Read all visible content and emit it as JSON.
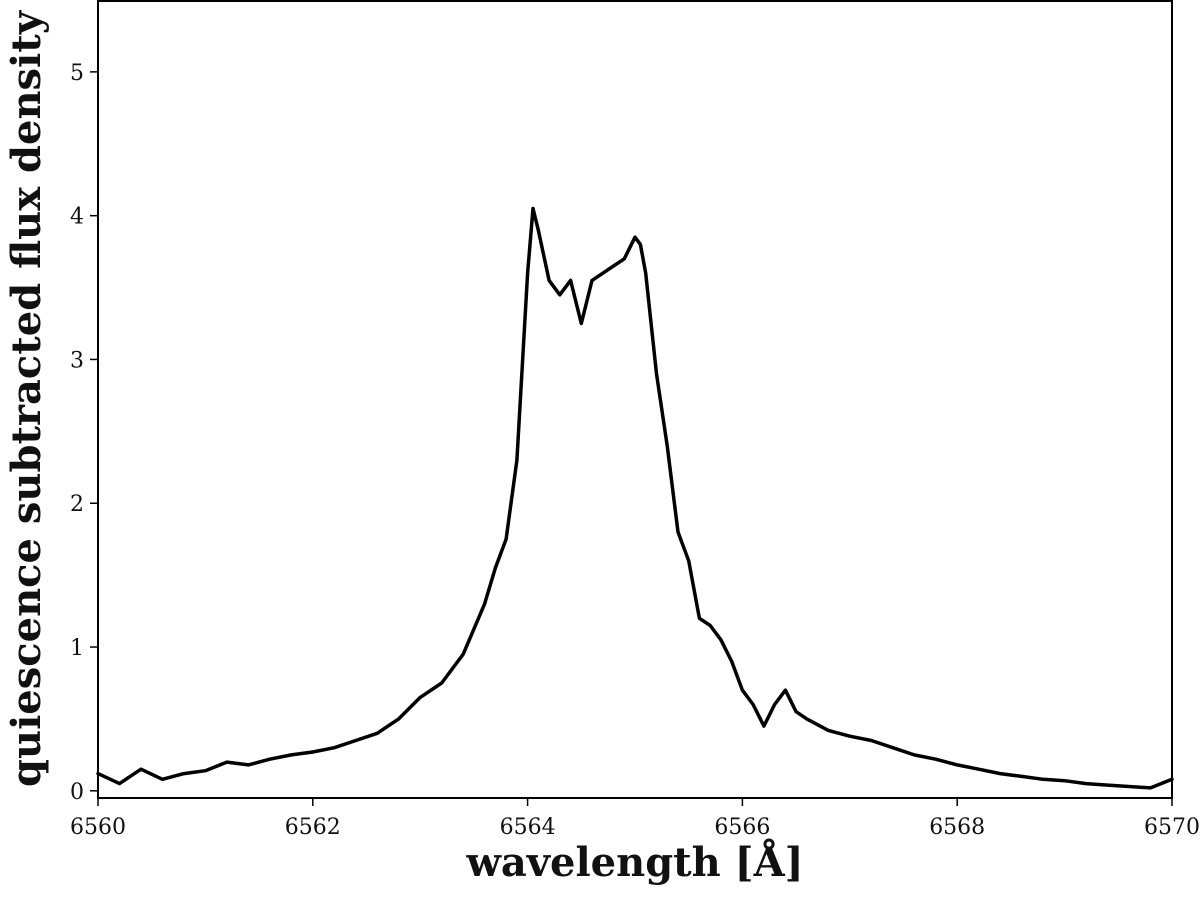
{
  "chart_data": {
    "type": "line",
    "title": "",
    "xlabel": "wavelength [Å]",
    "ylabel": "quiescence subtracted flux density",
    "xlim": [
      6560,
      6570
    ],
    "ylim": [
      -0.05,
      5.5
    ],
    "grid": false,
    "legend": "none",
    "x_ticks": [
      6560,
      6562,
      6564,
      6566,
      6568,
      6570
    ],
    "y_ticks": [
      0,
      1,
      2,
      3,
      4,
      5
    ],
    "line_color": "#000000",
    "series": [
      {
        "x": [
          6560.0,
          6560.2,
          6560.4,
          6560.6,
          6560.8,
          6561.0,
          6561.2,
          6561.4,
          6561.6,
          6561.8,
          6562.0,
          6562.2,
          6562.4,
          6562.6,
          6562.8,
          6563.0,
          6563.2,
          6563.4,
          6563.6,
          6563.7,
          6563.8,
          6563.9,
          6564.0,
          6564.05,
          6564.1,
          6564.2,
          6564.3,
          6564.4,
          6564.5,
          6564.6,
          6564.7,
          6564.8,
          6564.9,
          6565.0,
          6565.05,
          6565.1,
          6565.2,
          6565.3,
          6565.4,
          6565.5,
          6565.6,
          6565.7,
          6565.8,
          6565.9,
          6566.0,
          6566.1,
          6566.2,
          6566.3,
          6566.4,
          6566.5,
          6566.6,
          6566.8,
          6567.0,
          6567.2,
          6567.4,
          6567.6,
          6567.8,
          6568.0,
          6568.2,
          6568.4,
          6568.6,
          6568.8,
          6569.0,
          6569.2,
          6569.4,
          6569.6,
          6569.8,
          6570.0
        ],
        "y": [
          0.12,
          0.05,
          0.15,
          0.08,
          0.12,
          0.14,
          0.2,
          0.18,
          0.22,
          0.25,
          0.27,
          0.3,
          0.35,
          0.4,
          0.5,
          0.65,
          0.75,
          0.95,
          1.3,
          1.55,
          1.75,
          2.3,
          3.6,
          4.05,
          3.9,
          3.55,
          3.45,
          3.55,
          3.25,
          3.55,
          3.6,
          3.65,
          3.7,
          3.85,
          3.8,
          3.6,
          2.9,
          2.4,
          1.8,
          1.6,
          1.2,
          1.15,
          1.05,
          0.9,
          0.7,
          0.6,
          0.45,
          0.6,
          0.7,
          0.55,
          0.5,
          0.42,
          0.38,
          0.35,
          0.3,
          0.25,
          0.22,
          0.18,
          0.15,
          0.12,
          0.1,
          0.08,
          0.07,
          0.05,
          0.04,
          0.03,
          0.02,
          0.08
        ]
      }
    ]
  }
}
